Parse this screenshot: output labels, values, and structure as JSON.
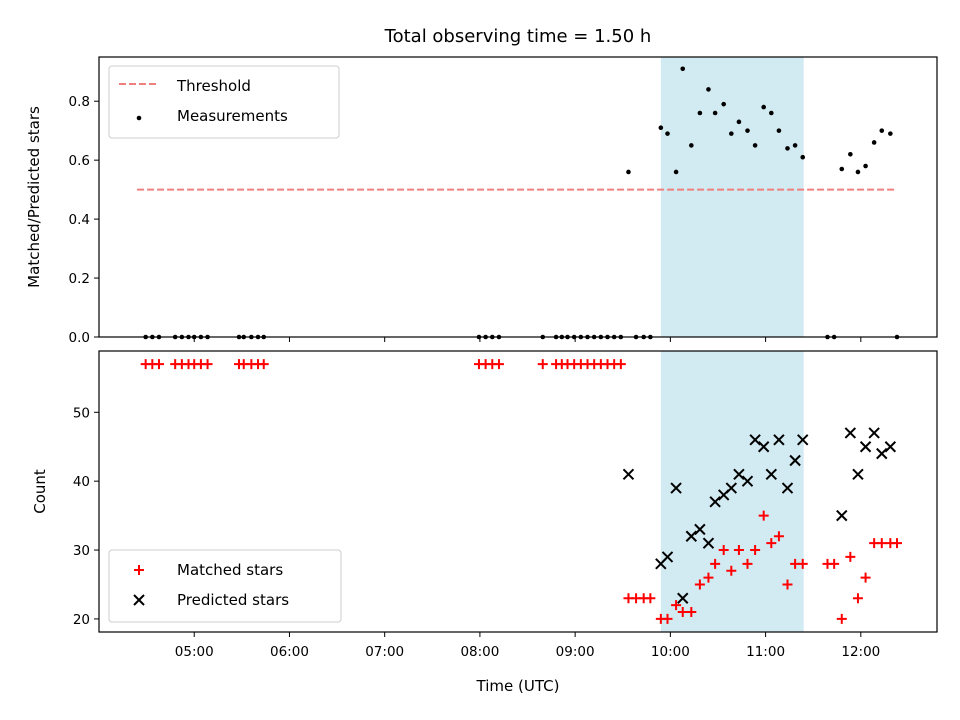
{
  "chart_data": [
    {
      "type": "scatter",
      "title": "Total observing time = 1.50 h",
      "xlabel": "",
      "ylabel": "Matched/Predicted stars",
      "xlim_hours": [
        4.0,
        12.8
      ],
      "ylim": [
        0,
        0.95
      ],
      "yticks": [
        0.0,
        0.2,
        0.4,
        0.6,
        0.8
      ],
      "ytick_labels": [
        "0.0",
        "0.2",
        "0.4",
        "0.6",
        "0.8"
      ],
      "legend_position": "top-left",
      "shaded_span_hours": [
        9.9,
        11.4
      ],
      "shade_color": "#add8e6",
      "threshold": {
        "name": "Threshold",
        "value": 0.5,
        "x_range_hours": [
          4.4,
          12.35
        ],
        "color": "#f08080"
      },
      "series": [
        {
          "name": "Measurements",
          "color": "#000000",
          "marker": "dot",
          "points": [
            [
              4.49,
              0
            ],
            [
              4.56,
              0
            ],
            [
              4.63,
              0
            ],
            [
              4.8,
              0
            ],
            [
              4.87,
              0
            ],
            [
              4.94,
              0
            ],
            [
              5.0,
              0
            ],
            [
              5.07,
              0
            ],
            [
              5.14,
              0
            ],
            [
              5.47,
              0
            ],
            [
              5.52,
              0
            ],
            [
              5.6,
              0
            ],
            [
              5.67,
              0
            ],
            [
              5.73,
              0
            ],
            [
              7.99,
              0
            ],
            [
              8.06,
              0
            ],
            [
              8.13,
              0
            ],
            [
              8.2,
              0
            ],
            [
              8.66,
              0
            ],
            [
              8.8,
              0
            ],
            [
              8.86,
              0
            ],
            [
              8.92,
              0
            ],
            [
              8.99,
              0
            ],
            [
              9.06,
              0
            ],
            [
              9.13,
              0
            ],
            [
              9.2,
              0
            ],
            [
              9.27,
              0
            ],
            [
              9.34,
              0
            ],
            [
              9.41,
              0
            ],
            [
              9.48,
              0
            ],
            [
              9.56,
              0.56
            ],
            [
              9.64,
              0
            ],
            [
              9.72,
              0
            ],
            [
              9.79,
              0
            ],
            [
              9.9,
              0.71
            ],
            [
              9.97,
              0.69
            ],
            [
              10.06,
              0.56
            ],
            [
              10.13,
              0.91
            ],
            [
              10.22,
              0.65
            ],
            [
              10.31,
              0.76
            ],
            [
              10.4,
              0.84
            ],
            [
              10.47,
              0.76
            ],
            [
              10.56,
              0.79
            ],
            [
              10.64,
              0.69
            ],
            [
              10.72,
              0.73
            ],
            [
              10.81,
              0.7
            ],
            [
              10.89,
              0.65
            ],
            [
              10.98,
              0.78
            ],
            [
              11.06,
              0.76
            ],
            [
              11.14,
              0.7
            ],
            [
              11.23,
              0.64
            ],
            [
              11.31,
              0.65
            ],
            [
              11.39,
              0.61
            ],
            [
              11.65,
              0
            ],
            [
              11.72,
              0
            ],
            [
              11.8,
              0.57
            ],
            [
              11.89,
              0.62
            ],
            [
              11.97,
              0.56
            ],
            [
              12.05,
              0.58
            ],
            [
              12.14,
              0.66
            ],
            [
              12.22,
              0.7
            ],
            [
              12.31,
              0.69
            ],
            [
              12.38,
              0
            ]
          ]
        }
      ]
    },
    {
      "type": "scatter",
      "title": "",
      "xlabel": "Time (UTC)",
      "ylabel": "Count",
      "xlim_hours": [
        4.0,
        12.8
      ],
      "ylim": [
        18.1,
        58.9
      ],
      "yticks": [
        20,
        30,
        40,
        50
      ],
      "ytick_labels": [
        "20",
        "30",
        "40",
        "50"
      ],
      "xticks_hours": [
        5,
        6,
        7,
        8,
        9,
        10,
        11,
        12
      ],
      "xtick_labels": [
        "05:00",
        "06:00",
        "07:00",
        "08:00",
        "09:00",
        "10:00",
        "11:00",
        "12:00"
      ],
      "legend_position": "bottom-left",
      "shaded_span_hours": [
        9.9,
        11.4
      ],
      "shade_color": "#add8e6",
      "series": [
        {
          "name": "Matched stars",
          "color": "#ff0000",
          "marker": "plus",
          "points": [
            [
              4.49,
              57
            ],
            [
              4.56,
              57
            ],
            [
              4.63,
              57
            ],
            [
              4.8,
              57
            ],
            [
              4.87,
              57
            ],
            [
              4.94,
              57
            ],
            [
              5.0,
              57
            ],
            [
              5.07,
              57
            ],
            [
              5.14,
              57
            ],
            [
              5.47,
              57
            ],
            [
              5.52,
              57
            ],
            [
              5.6,
              57
            ],
            [
              5.67,
              57
            ],
            [
              5.73,
              57
            ],
            [
              7.99,
              57
            ],
            [
              8.06,
              57
            ],
            [
              8.13,
              57
            ],
            [
              8.2,
              57
            ],
            [
              8.66,
              57
            ],
            [
              8.8,
              57
            ],
            [
              8.86,
              57
            ],
            [
              8.92,
              57
            ],
            [
              8.99,
              57
            ],
            [
              9.06,
              57
            ],
            [
              9.13,
              57
            ],
            [
              9.2,
              57
            ],
            [
              9.27,
              57
            ],
            [
              9.34,
              57
            ],
            [
              9.41,
              57
            ],
            [
              9.48,
              57
            ],
            [
              9.56,
              23
            ],
            [
              9.64,
              23
            ],
            [
              9.72,
              23
            ],
            [
              9.79,
              23
            ],
            [
              9.9,
              20
            ],
            [
              9.97,
              20
            ],
            [
              10.06,
              22
            ],
            [
              10.13,
              21
            ],
            [
              10.22,
              21
            ],
            [
              10.31,
              25
            ],
            [
              10.4,
              26
            ],
            [
              10.47,
              28
            ],
            [
              10.56,
              30
            ],
            [
              10.64,
              27
            ],
            [
              10.72,
              30
            ],
            [
              10.81,
              28
            ],
            [
              10.89,
              30
            ],
            [
              10.98,
              35
            ],
            [
              11.06,
              31
            ],
            [
              11.14,
              32
            ],
            [
              11.23,
              25
            ],
            [
              11.31,
              28
            ],
            [
              11.39,
              28
            ],
            [
              11.65,
              28
            ],
            [
              11.72,
              28
            ],
            [
              11.8,
              20
            ],
            [
              11.89,
              29
            ],
            [
              11.97,
              23
            ],
            [
              12.05,
              26
            ],
            [
              12.14,
              31
            ],
            [
              12.22,
              31
            ],
            [
              12.31,
              31
            ],
            [
              12.38,
              31
            ]
          ]
        },
        {
          "name": "Predicted stars",
          "color": "#000000",
          "marker": "x",
          "points": [
            [
              9.56,
              41
            ],
            [
              9.9,
              28
            ],
            [
              9.97,
              29
            ],
            [
              10.06,
              39
            ],
            [
              10.13,
              23
            ],
            [
              10.22,
              32
            ],
            [
              10.31,
              33
            ],
            [
              10.4,
              31
            ],
            [
              10.47,
              37
            ],
            [
              10.56,
              38
            ],
            [
              10.64,
              39
            ],
            [
              10.72,
              41
            ],
            [
              10.81,
              40
            ],
            [
              10.89,
              46
            ],
            [
              10.98,
              45
            ],
            [
              11.06,
              41
            ],
            [
              11.14,
              46
            ],
            [
              11.23,
              39
            ],
            [
              11.31,
              43
            ],
            [
              11.39,
              46
            ],
            [
              11.8,
              35
            ],
            [
              11.89,
              47
            ],
            [
              11.97,
              41
            ],
            [
              12.05,
              45
            ],
            [
              12.14,
              47
            ],
            [
              12.22,
              44
            ],
            [
              12.31,
              45
            ]
          ]
        }
      ]
    }
  ]
}
